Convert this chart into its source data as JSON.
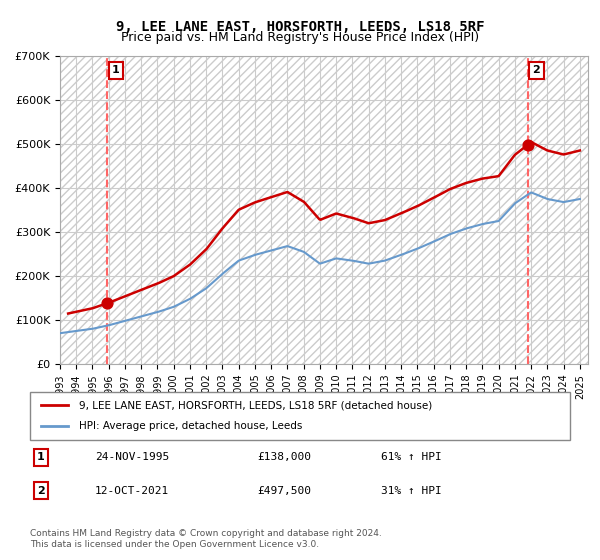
{
  "title": "9, LEE LANE EAST, HORSFORTH, LEEDS, LS18 5RF",
  "subtitle": "Price paid vs. HM Land Registry's House Price Index (HPI)",
  "ylabel": "",
  "ylim": [
    0,
    700000
  ],
  "yticks": [
    0,
    100000,
    200000,
    300000,
    400000,
    500000,
    600000,
    700000
  ],
  "ytick_labels": [
    "£0",
    "£100K",
    "£200K",
    "£300K",
    "£400K",
    "£500K",
    "£600K",
    "£700K"
  ],
  "xlim_start": 1993.0,
  "xlim_end": 2025.5,
  "sale1_date": 1995.9,
  "sale1_price": 138000,
  "sale1_label": "1",
  "sale2_date": 2021.78,
  "sale2_price": 497500,
  "sale2_label": "2",
  "line_color_property": "#cc0000",
  "line_color_hpi": "#6699cc",
  "dot_color": "#cc0000",
  "vline_color": "#ff6666",
  "background_color": "#ffffff",
  "hatch_color": "#dddddd",
  "grid_color": "#cccccc",
  "legend_label_property": "9, LEE LANE EAST, HORSFORTH, LEEDS, LS18 5RF (detached house)",
  "legend_label_hpi": "HPI: Average price, detached house, Leeds",
  "table_row1": [
    "1",
    "24-NOV-1995",
    "£138,000",
    "61% ↑ HPI"
  ],
  "table_row2": [
    "2",
    "12-OCT-2021",
    "£497,500",
    "31% ↑ HPI"
  ],
  "footnote": "Contains HM Land Registry data © Crown copyright and database right 2024.\nThis data is licensed under the Open Government Licence v3.0.",
  "title_fontsize": 10,
  "subtitle_fontsize": 9
}
